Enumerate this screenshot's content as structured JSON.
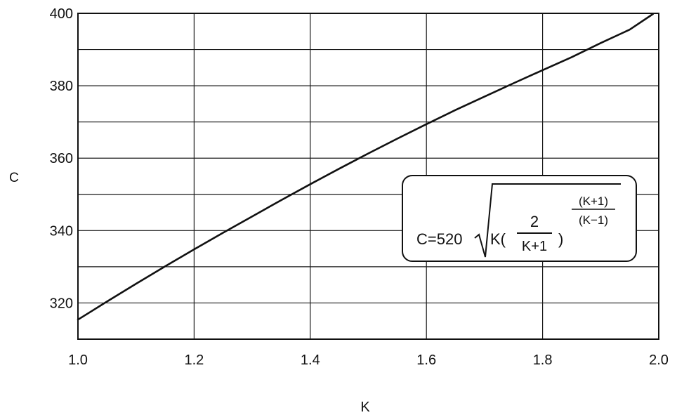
{
  "chart_data": {
    "type": "line",
    "title": "",
    "xlabel": "K",
    "ylabel": "C",
    "xlim": [
      1.0,
      2.0
    ],
    "ylim": [
      310,
      400
    ],
    "x_ticks": [
      1.0,
      1.2,
      1.4,
      1.6,
      1.8,
      2.0
    ],
    "x_tick_labels": [
      "1.0",
      "1.2",
      "1.4",
      "1.6",
      "1.8",
      "2.0"
    ],
    "y_ticks": [
      320,
      340,
      360,
      380,
      400
    ],
    "y_tick_labels": [
      "320",
      "340",
      "360",
      "380",
      "400"
    ],
    "x_gridlines": [
      1.0,
      1.2,
      1.4,
      1.6,
      1.8,
      2.0
    ],
    "y_gridlines": [
      310,
      320,
      330,
      340,
      350,
      360,
      370,
      380,
      390,
      400
    ],
    "grid": true,
    "series": [
      {
        "x": [
          1.0,
          1.05,
          1.1,
          1.15,
          1.2,
          1.25,
          1.3,
          1.35,
          1.4,
          1.45,
          1.5,
          1.55,
          1.6,
          1.65,
          1.7,
          1.75,
          1.8,
          1.85,
          1.9,
          1.95,
          1.99
        ],
        "values": [
          315.4,
          320.4,
          325.3,
          330.1,
          334.8,
          339.4,
          343.9,
          348.4,
          352.8,
          357.1,
          361.3,
          365.4,
          369.4,
          373.3,
          377.0,
          380.7,
          384.3,
          387.9,
          391.8,
          395.5,
          399.8
        ]
      }
    ],
    "annotation": {
      "lhs": "C=520",
      "lead": "K(",
      "frac_num": "2",
      "frac_den": "K+1",
      "close": ")",
      "exp_num": "(K+1)",
      "exp_den": "(K−1)"
    }
  }
}
